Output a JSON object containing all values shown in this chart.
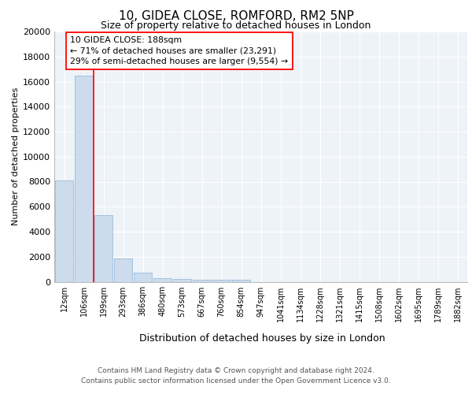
{
  "title1": "10, GIDEA CLOSE, ROMFORD, RM2 5NP",
  "title2": "Size of property relative to detached houses in London",
  "xlabel": "Distribution of detached houses by size in London",
  "ylabel": "Number of detached properties",
  "categories": [
    "12sqm",
    "106sqm",
    "199sqm",
    "293sqm",
    "386sqm",
    "480sqm",
    "573sqm",
    "667sqm",
    "760sqm",
    "854sqm",
    "947sqm",
    "1041sqm",
    "1134sqm",
    "1228sqm",
    "1321sqm",
    "1415sqm",
    "1508sqm",
    "1602sqm",
    "1695sqm",
    "1789sqm",
    "1882sqm"
  ],
  "values": [
    8100,
    16500,
    5300,
    1850,
    700,
    290,
    210,
    180,
    160,
    140,
    0,
    0,
    0,
    0,
    0,
    0,
    0,
    0,
    0,
    0,
    0
  ],
  "bar_color": "#ccdcec",
  "bar_edge_color": "#99bbdd",
  "vline_x": 1.5,
  "vline_color": "red",
  "annotation_text": "10 GIDEA CLOSE: 188sqm\n← 71% of detached houses are smaller (23,291)\n29% of semi-detached houses are larger (9,554) →",
  "annotation_box_color": "white",
  "annotation_box_edge": "red",
  "ylim": [
    0,
    20000
  ],
  "yticks": [
    0,
    2000,
    4000,
    6000,
    8000,
    10000,
    12000,
    14000,
    16000,
    18000,
    20000
  ],
  "footer1": "Contains HM Land Registry data © Crown copyright and database right 2024.",
  "footer2": "Contains public sector information licensed under the Open Government Licence v3.0.",
  "bg_color": "#eef3f8",
  "plot_bg_color": "#eef3f8"
}
